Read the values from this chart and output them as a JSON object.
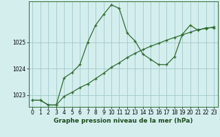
{
  "line1_x": [
    0,
    1,
    2,
    3,
    4,
    5,
    6,
    7,
    8,
    9,
    10,
    11,
    12,
    13,
    14,
    15,
    16,
    17,
    18,
    19,
    20,
    21,
    22,
    23
  ],
  "line1_y": [
    1022.8,
    1022.8,
    1022.62,
    1022.62,
    1023.65,
    1023.85,
    1024.15,
    1025.0,
    1025.65,
    1026.05,
    1026.42,
    1026.28,
    1025.35,
    1025.05,
    1024.55,
    1024.35,
    1024.15,
    1024.15,
    1024.45,
    1025.3,
    1025.65,
    1025.45,
    1025.55,
    1025.55
  ],
  "line2_x": [
    0,
    1,
    2,
    3,
    4,
    5,
    6,
    7,
    8,
    9,
    10,
    11,
    12,
    13,
    14,
    15,
    16,
    17,
    18,
    19,
    20,
    21,
    22,
    23
  ],
  "line2_y": [
    1022.8,
    1022.8,
    1022.62,
    1022.62,
    1022.95,
    1023.1,
    1023.28,
    1023.42,
    1023.62,
    1023.82,
    1024.05,
    1024.22,
    1024.42,
    1024.58,
    1024.72,
    1024.85,
    1024.96,
    1025.08,
    1025.18,
    1025.28,
    1025.38,
    1025.48,
    1025.52,
    1025.58
  ],
  "line_color": "#2d6a2d",
  "bg_color": "#d4eeee",
  "grid_color": "#a0c8c8",
  "xlabel": "Graphe pression niveau de la mer (hPa)",
  "ylim": [
    1022.55,
    1026.55
  ],
  "xlim": [
    -0.5,
    23.5
  ],
  "yticks": [
    1023,
    1024,
    1025
  ],
  "xticks": [
    0,
    1,
    2,
    3,
    4,
    5,
    6,
    7,
    8,
    9,
    10,
    11,
    12,
    13,
    14,
    15,
    16,
    17,
    18,
    19,
    20,
    21,
    22,
    23
  ],
  "xlabel_fontsize": 6.5,
  "tick_fontsize": 5.5,
  "figwidth": 3.2,
  "figheight": 2.0,
  "dpi": 100
}
